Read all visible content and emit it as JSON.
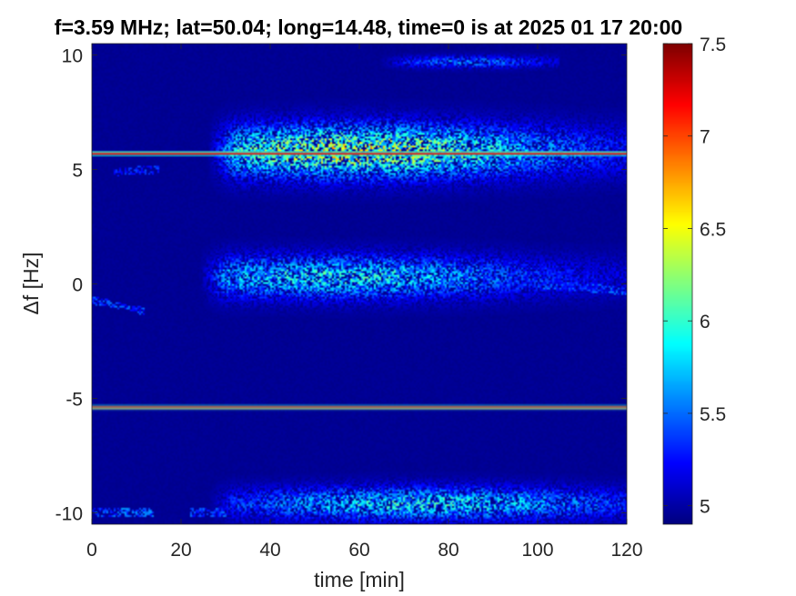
{
  "chart_data": {
    "type": "heatmap",
    "title": "f=3.59 MHz;  lat=50.04; long=14.48, time=0 is at 2025 01 17 20:00",
    "xlabel": "time [min]",
    "ylabel": "Δf [Hz]",
    "xlim": [
      0,
      120
    ],
    "ylim": [
      -10.5,
      10.5
    ],
    "x_ticks": [
      0,
      20,
      40,
      60,
      80,
      100,
      120
    ],
    "x_tick_labels": [
      "0",
      "20",
      "40",
      "60",
      "80",
      "100",
      "120"
    ],
    "y_ticks": [
      10,
      5,
      0,
      -5,
      -10
    ],
    "y_tick_labels": [
      "10",
      "5",
      "0",
      "-5",
      "-10"
    ],
    "colormap": "jet",
    "colorbar": {
      "range": [
        4.9,
        7.5
      ],
      "ticks": [
        7.5,
        7,
        6.5,
        6,
        5.5,
        5
      ],
      "tick_labels": [
        "7.5",
        "7",
        "6.5",
        "6",
        "5.5",
        "5"
      ]
    },
    "background_value": 4.95,
    "carrier_lines": [
      {
        "df_hz": 5.7,
        "value": 7.2
      },
      {
        "df_hz": -5.4,
        "value": 7.2
      }
    ],
    "spread_bands": [
      {
        "center_df_hz": 5.8,
        "time_range": [
          30,
          120
        ],
        "peak_time": 60,
        "half_width_hz": 1.1,
        "peak_value": 6.5
      },
      {
        "center_df_hz": 0.3,
        "time_range": [
          28,
          120
        ],
        "peak_time": 55,
        "half_width_hz": 0.9,
        "peak_value": 6.0
      },
      {
        "center_df_hz": -9.6,
        "time_range": [
          30,
          120
        ],
        "peak_time": 75,
        "half_width_hz": 0.7,
        "peak_value": 6.0
      },
      {
        "center_df_hz": 9.7,
        "time_range": [
          68,
          105
        ],
        "peak_time": 85,
        "half_width_hz": 0.25,
        "peak_value": 5.6
      }
    ],
    "weak_traces": [
      {
        "from": [
          0,
          -0.7
        ],
        "to": [
          12,
          -1.2
        ],
        "value": 5.5
      },
      {
        "from": [
          5,
          4.9
        ],
        "to": [
          15,
          5.0
        ],
        "value": 5.4
      },
      {
        "from": [
          0,
          -10.0
        ],
        "to": [
          14,
          -10.0
        ],
        "value": 5.6
      },
      {
        "from": [
          22,
          -10.0
        ],
        "to": [
          30,
          -10.0
        ],
        "value": 5.5
      },
      {
        "from": [
          100,
          0.0
        ],
        "to": [
          120,
          -0.3
        ],
        "value": 5.5
      }
    ]
  }
}
